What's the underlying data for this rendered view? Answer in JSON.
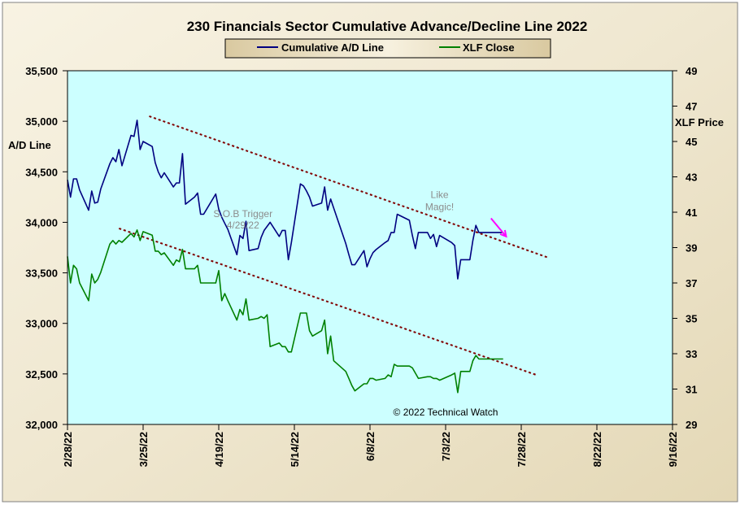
{
  "chart_data": {
    "type": "line",
    "title": "230 Financials  Sector Cumulative  Advance/Decline  Line 2022",
    "left_axis_label": "A/D Line",
    "right_axis_label": "XLF Price",
    "x_ticks": [
      "2/28/22",
      "3/25/22",
      "4/19/22",
      "5/14/22",
      "6/8/22",
      "7/3/22",
      "7/28/22",
      "8/22/22",
      "9/16/22"
    ],
    "x_range": [
      "2022-02-28",
      "2022-09-16"
    ],
    "left_ylim": [
      32000,
      35500
    ],
    "left_ticks": [
      32000,
      32500,
      33000,
      33500,
      34000,
      34500,
      35000,
      35500
    ],
    "left_tick_labels": [
      "32,000",
      "32,500",
      "33,000",
      "33,500",
      "34,000",
      "34,500",
      "35,000",
      "35,500"
    ],
    "right_ylim": [
      29,
      49
    ],
    "right_ticks": [
      29,
      31,
      33,
      35,
      37,
      39,
      41,
      43,
      45,
      47,
      49
    ],
    "legend": {
      "placement": "top-center"
    },
    "colors": {
      "frame_background": "#efe7d0",
      "plot_background": "#ccffff",
      "ad_line": "#000080",
      "xlf_line": "#008000",
      "trendline": "#800000",
      "arrow": "#ff00ff"
    },
    "series": [
      {
        "name": "Cumulative A/D Line",
        "axis": "left",
        "x": [
          "2022-02-28",
          "2022-03-01",
          "2022-03-02",
          "2022-03-03",
          "2022-03-04",
          "2022-03-07",
          "2022-03-08",
          "2022-03-09",
          "2022-03-10",
          "2022-03-11",
          "2022-03-14",
          "2022-03-15",
          "2022-03-16",
          "2022-03-17",
          "2022-03-18",
          "2022-03-21",
          "2022-03-22",
          "2022-03-23",
          "2022-03-24",
          "2022-03-25",
          "2022-03-28",
          "2022-03-29",
          "2022-03-30",
          "2022-03-31",
          "2022-04-01",
          "2022-04-04",
          "2022-04-05",
          "2022-04-06",
          "2022-04-07",
          "2022-04-08",
          "2022-04-11",
          "2022-04-12",
          "2022-04-13",
          "2022-04-14",
          "2022-04-18",
          "2022-04-19",
          "2022-04-20",
          "2022-04-21",
          "2022-04-22",
          "2022-04-25",
          "2022-04-26",
          "2022-04-27",
          "2022-04-28",
          "2022-04-29",
          "2022-05-02",
          "2022-05-03",
          "2022-05-04",
          "2022-05-05",
          "2022-05-06",
          "2022-05-09",
          "2022-05-10",
          "2022-05-11",
          "2022-05-12",
          "2022-05-13",
          "2022-05-16",
          "2022-05-17",
          "2022-05-18",
          "2022-05-19",
          "2022-05-20",
          "2022-05-23",
          "2022-05-24",
          "2022-05-25",
          "2022-05-26",
          "2022-05-27",
          "2022-05-31",
          "2022-06-01",
          "2022-06-02",
          "2022-06-03",
          "2022-06-06",
          "2022-06-07",
          "2022-06-08",
          "2022-06-09",
          "2022-06-10",
          "2022-06-13",
          "2022-06-14",
          "2022-06-15",
          "2022-06-16",
          "2022-06-17",
          "2022-06-21",
          "2022-06-22",
          "2022-06-23",
          "2022-06-24",
          "2022-06-27",
          "2022-06-28",
          "2022-06-29",
          "2022-06-30",
          "2022-07-01",
          "2022-07-05",
          "2022-07-06",
          "2022-07-07",
          "2022-07-08",
          "2022-07-11",
          "2022-07-12",
          "2022-07-13",
          "2022-07-14",
          "2022-07-15",
          "2022-07-18",
          "2022-07-19",
          "2022-07-20",
          "2022-07-21",
          "2022-07-22"
        ],
        "values": [
          34420,
          34250,
          34430,
          34430,
          34320,
          34120,
          34310,
          34190,
          34200,
          34330,
          34580,
          34640,
          34600,
          34720,
          34560,
          34860,
          34850,
          35010,
          34720,
          34800,
          34750,
          34590,
          34500,
          34440,
          34490,
          34350,
          34390,
          34390,
          34680,
          34180,
          34250,
          34290,
          34080,
          34080,
          34280,
          34130,
          34050,
          33990,
          33930,
          33680,
          33870,
          33840,
          34010,
          33720,
          33740,
          33850,
          33920,
          33960,
          34000,
          33860,
          33920,
          33920,
          33630,
          33800,
          34380,
          34360,
          34310,
          34250,
          34160,
          34190,
          34350,
          34120,
          34230,
          34140,
          33790,
          33680,
          33580,
          33580,
          33720,
          33560,
          33640,
          33700,
          33730,
          33800,
          33820,
          33900,
          33900,
          34080,
          34020,
          33870,
          33740,
          33900,
          33900,
          33840,
          33880,
          33760,
          33870,
          33800,
          33770,
          33440,
          33630,
          33630,
          33820,
          33970,
          33900,
          33900,
          33900,
          33900,
          33900,
          33900,
          33900
        ]
      },
      {
        "name": "XLF Close",
        "axis": "right",
        "x": [
          "2022-02-28",
          "2022-03-01",
          "2022-03-02",
          "2022-03-03",
          "2022-03-04",
          "2022-03-07",
          "2022-03-08",
          "2022-03-09",
          "2022-03-10",
          "2022-03-11",
          "2022-03-14",
          "2022-03-15",
          "2022-03-16",
          "2022-03-17",
          "2022-03-18",
          "2022-03-21",
          "2022-03-22",
          "2022-03-23",
          "2022-03-24",
          "2022-03-25",
          "2022-03-28",
          "2022-03-29",
          "2022-03-30",
          "2022-03-31",
          "2022-04-01",
          "2022-04-04",
          "2022-04-05",
          "2022-04-06",
          "2022-04-07",
          "2022-04-08",
          "2022-04-11",
          "2022-04-12",
          "2022-04-13",
          "2022-04-14",
          "2022-04-18",
          "2022-04-19",
          "2022-04-20",
          "2022-04-21",
          "2022-04-22",
          "2022-04-25",
          "2022-04-26",
          "2022-04-27",
          "2022-04-28",
          "2022-04-29",
          "2022-05-02",
          "2022-05-03",
          "2022-05-04",
          "2022-05-05",
          "2022-05-06",
          "2022-05-09",
          "2022-05-10",
          "2022-05-11",
          "2022-05-12",
          "2022-05-13",
          "2022-05-16",
          "2022-05-17",
          "2022-05-18",
          "2022-05-19",
          "2022-05-20",
          "2022-05-23",
          "2022-05-24",
          "2022-05-25",
          "2022-05-26",
          "2022-05-27",
          "2022-05-31",
          "2022-06-01",
          "2022-06-02",
          "2022-06-03",
          "2022-06-06",
          "2022-06-07",
          "2022-06-08",
          "2022-06-09",
          "2022-06-10",
          "2022-06-13",
          "2022-06-14",
          "2022-06-15",
          "2022-06-16",
          "2022-06-17",
          "2022-06-21",
          "2022-06-22",
          "2022-06-23",
          "2022-06-24",
          "2022-06-27",
          "2022-06-28",
          "2022-06-29",
          "2022-06-30",
          "2022-07-01",
          "2022-07-05",
          "2022-07-06",
          "2022-07-07",
          "2022-07-08",
          "2022-07-11",
          "2022-07-12",
          "2022-07-13",
          "2022-07-14",
          "2022-07-15",
          "2022-07-18",
          "2022-07-19",
          "2022-07-20",
          "2022-07-21",
          "2022-07-22"
        ],
        "values": [
          38.5,
          37.0,
          38.0,
          37.8,
          37.0,
          36.0,
          37.5,
          37.0,
          37.2,
          37.6,
          39.2,
          39.4,
          39.2,
          39.4,
          39.3,
          39.8,
          39.6,
          40.0,
          39.4,
          39.9,
          39.7,
          38.8,
          38.8,
          38.6,
          38.7,
          38.0,
          38.3,
          38.2,
          38.9,
          37.8,
          37.8,
          38.0,
          37.0,
          37.0,
          37.0,
          37.7,
          36.0,
          36.4,
          36.0,
          34.9,
          35.5,
          35.2,
          36.1,
          34.9,
          35.0,
          35.1,
          35.0,
          35.2,
          33.4,
          33.6,
          33.4,
          33.4,
          33.1,
          33.1,
          35.3,
          35.3,
          35.3,
          34.3,
          34.0,
          34.3,
          34.9,
          33.0,
          34.0,
          32.6,
          32.0,
          31.6,
          31.2,
          30.9,
          31.3,
          31.3,
          31.6,
          31.6,
          31.5,
          31.6,
          31.8,
          31.7,
          32.4,
          32.3,
          32.3,
          32.2,
          31.9,
          31.6,
          31.7,
          31.7,
          31.6,
          31.6,
          31.5,
          31.8,
          31.9,
          30.8,
          32.0,
          32.0,
          32.6,
          32.9,
          32.7,
          32.7,
          32.7,
          32.7,
          32.7,
          32.7,
          32.7
        ]
      }
    ],
    "trendlines": [
      {
        "axis": "left",
        "from": [
          "2022-03-27",
          35050
        ],
        "to": [
          "2022-08-06",
          33650
        ]
      },
      {
        "axis": "left",
        "from": [
          "2022-03-17",
          33940
        ],
        "to": [
          "2022-08-02",
          32490
        ]
      }
    ],
    "annotations": [
      {
        "text": "S.O.B  Trigger",
        "x": "2022-04-27",
        "y": 34050,
        "axis": "left"
      },
      {
        "text": "4/29/22",
        "x": "2022-04-27",
        "y": 33940,
        "axis": "left"
      },
      {
        "text": "Like",
        "x": "2022-07-01",
        "y": 34240,
        "axis": "left"
      },
      {
        "text": "Magic!",
        "x": "2022-07-01",
        "y": 34120,
        "axis": "left"
      },
      {
        "text": "© 2022 Technical Watch",
        "x": "2022-07-03",
        "y": 32090,
        "axis": "left"
      }
    ],
    "arrow": {
      "axis": "left",
      "from": [
        "2022-07-18",
        34040
      ],
      "to": [
        "2022-07-23",
        33860
      ]
    }
  }
}
